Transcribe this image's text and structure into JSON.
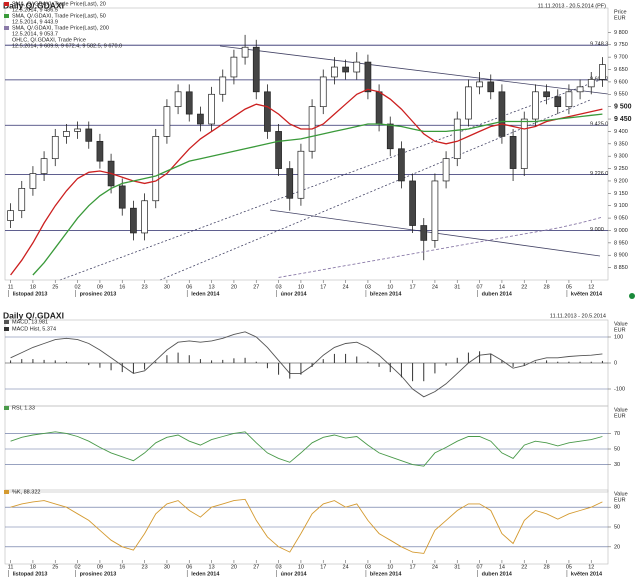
{
  "chart_data": [
    {
      "type": "candlestick",
      "title": "Daily Q/.GDAXI",
      "subtitle": "11.11.2013 - 20.5.2014 (PF)",
      "y_axis_label": "Price",
      "y_axis_unit": "EUR",
      "categories": [
        "11",
        null,
        "18",
        null,
        "25",
        null,
        "02",
        null,
        "09",
        null,
        "16",
        null,
        "23",
        null,
        "30",
        null,
        "06",
        null,
        "13",
        null,
        "20",
        null,
        "27",
        null,
        "03",
        null,
        "10",
        null,
        "17",
        null,
        "24",
        null,
        "03",
        null,
        "10",
        null,
        "17",
        null,
        "24",
        null,
        "31",
        null,
        "07",
        null,
        "14",
        null,
        "22",
        null,
        "28",
        null,
        "05",
        null,
        "12",
        null
      ],
      "months": [
        "listopad 2013",
        "prosinec 2013",
        "leden 2014",
        "únor 2014",
        "březen 2014",
        "duben 2014",
        "květen 2014"
      ],
      "open": [
        9040,
        9080,
        9170,
        9230,
        9290,
        9380,
        9400,
        9410,
        9360,
        9280,
        9180,
        9090,
        8990,
        9120,
        9380,
        9500,
        9560,
        9470,
        9430,
        9550,
        9620,
        9700,
        9740,
        9560,
        9400,
        9250,
        9130,
        9320,
        9500,
        9620,
        9660,
        9640,
        9680,
        9560,
        9430,
        9330,
        9200,
        9020,
        8960,
        9200,
        9290,
        9450,
        9580,
        9600,
        9560,
        9380,
        9250,
        9450,
        9560,
        9540,
        9500,
        9560,
        9580,
        9610
      ],
      "high": [
        9110,
        9200,
        9260,
        9320,
        9410,
        9430,
        9440,
        9440,
        9390,
        9310,
        9210,
        9120,
        9150,
        9410,
        9530,
        9590,
        9590,
        9500,
        9580,
        9650,
        9730,
        9790,
        9770,
        9590,
        9430,
        9280,
        9350,
        9530,
        9650,
        9700,
        9690,
        9720,
        9710,
        9590,
        9460,
        9360,
        9230,
        9050,
        9230,
        9320,
        9480,
        9610,
        9640,
        9630,
        9590,
        9410,
        9480,
        9590,
        9590,
        9570,
        9590,
        9610,
        9640,
        9700
      ],
      "low": [
        9010,
        9050,
        9140,
        9200,
        9260,
        9350,
        9370,
        9330,
        9250,
        9150,
        9060,
        8960,
        8960,
        9090,
        9350,
        9470,
        9440,
        9400,
        9400,
        9520,
        9590,
        9670,
        9530,
        9370,
        9220,
        9080,
        9100,
        9290,
        9470,
        9590,
        9610,
        9610,
        9530,
        9400,
        9300,
        9170,
        8990,
        8880,
        8930,
        9170,
        9260,
        9420,
        9550,
        9530,
        9350,
        9200,
        9220,
        9420,
        9510,
        9470,
        9470,
        9530,
        9550,
        9580
      ],
      "close": [
        9080,
        9170,
        9230,
        9290,
        9380,
        9400,
        9410,
        9360,
        9280,
        9180,
        9090,
        8990,
        9120,
        9380,
        9500,
        9560,
        9470,
        9430,
        9550,
        9620,
        9700,
        9740,
        9560,
        9400,
        9250,
        9130,
        9320,
        9500,
        9620,
        9660,
        9640,
        9680,
        9560,
        9430,
        9330,
        9200,
        9020,
        8960,
        9200,
        9290,
        9450,
        9580,
        9600,
        9560,
        9380,
        9250,
        9450,
        9560,
        9540,
        9500,
        9560,
        9580,
        9610,
        9670
      ],
      "series": [
        {
          "name": "SMA, Q/.GDAXI, Trade Price(Last), 20",
          "last": "12.5.2014, 9 486.5",
          "color": "#cc2020",
          "values": [
            8820,
            8880,
            8950,
            9030,
            9100,
            9160,
            9210,
            9235,
            9240,
            9230,
            9215,
            9200,
            9190,
            9200,
            9230,
            9280,
            9330,
            9370,
            9400,
            9430,
            9460,
            9490,
            9510,
            9500,
            9470,
            9430,
            9410,
            9410,
            9430,
            9470,
            9510,
            9550,
            9570,
            9560,
            9530,
            9490,
            9440,
            9390,
            9360,
            9350,
            9360,
            9380,
            9400,
            9420,
            9430,
            9420,
            9410,
            9420,
            9440,
            9450,
            9460,
            9470,
            9480,
            9490
          ]
        },
        {
          "name": "SMA, Q/.GDAXI, Trade Price(Last), 50",
          "last": "12.5.2014, 9 443.9",
          "color": "#3a9a3a",
          "values": [
            null,
            null,
            8820,
            8870,
            8930,
            8990,
            9050,
            9100,
            9140,
            9170,
            9190,
            9200,
            9210,
            9220,
            9240,
            9260,
            9280,
            9290,
            9300,
            9310,
            9320,
            9330,
            9340,
            9350,
            9360,
            9365,
            9370,
            9380,
            9390,
            9400,
            9410,
            9420,
            9430,
            9430,
            9425,
            9420,
            9410,
            9400,
            9400,
            9400,
            9405,
            9410,
            9420,
            9430,
            9440,
            9440,
            9440,
            9440,
            9445,
            9450,
            9455,
            9460,
            9465,
            9470
          ]
        },
        {
          "name": "SMA, Q/.GDAXI, Trade Price(Last), 200",
          "last": "12.5.2014, 9 053.7",
          "color": "#8a7aa8",
          "values": [
            null,
            null,
            null,
            null,
            null,
            null,
            null,
            null,
            null,
            null,
            null,
            null,
            null,
            null,
            null,
            null,
            null,
            null,
            null,
            null,
            null,
            null,
            null,
            null,
            8810,
            8818,
            8826,
            8834,
            8842,
            8850,
            8858,
            8866,
            8874,
            8882,
            8890,
            8898,
            8906,
            8914,
            8922,
            8930,
            8938,
            8946,
            8954,
            8962,
            8970,
            8978,
            8986,
            8994,
            9002,
            9010,
            9020,
            9030,
            9042,
            9054
          ]
        }
      ],
      "ohlc_name": "OHLC, Q/.GDAXI, Trade Price",
      "ohlc_last": "12.5.2014, 9 609.9, 9 672.4, 9 582.5, 9 670.0",
      "levels": [
        {
          "value": 9748.3,
          "label": "9 748.3"
        },
        {
          "value": 9608.2,
          "label": "9 608.2"
        },
        {
          "value": 9425.0,
          "label": "9 425.0"
        },
        {
          "value": 9226.0,
          "label": "9 226.0"
        },
        {
          "value": 9000,
          "label": "9 000"
        }
      ],
      "ylim": [
        8800,
        9850
      ],
      "yticks": [
        {
          "value": 8850,
          "label": "8 850"
        },
        {
          "value": 8900,
          "label": "8 900"
        },
        {
          "value": 8950,
          "label": "8 950"
        },
        {
          "value": 9000,
          "label": "9 000"
        },
        {
          "value": 9050,
          "label": "9 050"
        },
        {
          "value": 9100,
          "label": "9 100"
        },
        {
          "value": 9150,
          "label": "9 150"
        },
        {
          "value": 9200,
          "label": "9 200"
        },
        {
          "value": 9250,
          "label": "9 250"
        },
        {
          "value": 9300,
          "label": "9 300"
        },
        {
          "value": 9350,
          "label": "9 350"
        },
        {
          "value": 9400,
          "label": "9 400"
        },
        {
          "value": 9450,
          "label": "9 450"
        },
        {
          "value": 9500,
          "label": "9 500"
        },
        {
          "value": 9550,
          "label": "9 550"
        },
        {
          "value": 9600,
          "label": "9 600"
        },
        {
          "value": 9650,
          "label": "9 650"
        },
        {
          "value": 9700,
          "label": "9 700"
        },
        {
          "value": 9750,
          "label": "9 750"
        },
        {
          "value": 9800,
          "label": "9 800"
        }
      ]
    },
    {
      "type": "line",
      "title": "Daily Q/.GDAXI",
      "subtitle": "11.11.2013 - 20.5.2014",
      "y_axis_label": "Value",
      "y_axis_unit": "EUR",
      "series": [
        {
          "name": "MACD, 13.981",
          "color": "#555555",
          "kind": "line",
          "values": [
            20,
            40,
            60,
            75,
            90,
            95,
            90,
            75,
            50,
            20,
            -10,
            -40,
            -30,
            10,
            50,
            80,
            85,
            80,
            85,
            95,
            110,
            120,
            100,
            60,
            10,
            -40,
            -40,
            -10,
            30,
            60,
            75,
            80,
            60,
            30,
            -10,
            -50,
            -100,
            -130,
            -110,
            -80,
            -40,
            0,
            30,
            35,
            10,
            -20,
            -10,
            10,
            20,
            20,
            25,
            28,
            30,
            35
          ]
        },
        {
          "name": "MACD Hist, 5.374",
          "color": "#333333",
          "kind": "histogram",
          "values": [
            10,
            15,
            15,
            12,
            10,
            5,
            0,
            -8,
            -18,
            -28,
            -35,
            -40,
            -25,
            5,
            30,
            40,
            30,
            15,
            10,
            12,
            18,
            20,
            5,
            -20,
            -45,
            -60,
            -45,
            -15,
            15,
            35,
            35,
            25,
            5,
            -15,
            -35,
            -55,
            -70,
            -70,
            -40,
            -10,
            20,
            40,
            45,
            35,
            10,
            -15,
            -10,
            5,
            10,
            5,
            5,
            5,
            5,
            8
          ]
        }
      ],
      "ylim": [
        -150,
        150
      ],
      "yticks": [
        -100,
        0,
        100
      ]
    },
    {
      "type": "line",
      "y_axis_label": "Value",
      "y_axis_unit": "EUR",
      "series": [
        {
          "name": "RSI, 1.33",
          "color": "#4a9a4a",
          "kind": "line",
          "values": [
            60,
            65,
            68,
            70,
            72,
            70,
            66,
            60,
            52,
            45,
            40,
            35,
            45,
            58,
            65,
            68,
            60,
            55,
            62,
            66,
            70,
            72,
            58,
            45,
            38,
            33,
            45,
            58,
            65,
            68,
            64,
            66,
            55,
            45,
            40,
            35,
            30,
            28,
            45,
            52,
            60,
            66,
            66,
            60,
            45,
            38,
            55,
            60,
            58,
            54,
            58,
            60,
            62,
            66
          ]
        }
      ],
      "ylim": [
        0,
        100
      ],
      "yticks": [
        30,
        50,
        70
      ]
    },
    {
      "type": "line",
      "y_axis_label": "Value",
      "y_axis_unit": "EUR",
      "categories": [
        "11",
        null,
        "18",
        null,
        "25",
        null,
        "02",
        null,
        "09",
        null,
        "16",
        null,
        "23",
        null,
        "30",
        null,
        "06",
        null,
        "13",
        null,
        "20",
        null,
        "27",
        null,
        "03",
        null,
        "10",
        null,
        "17",
        null,
        "24",
        null,
        "03",
        null,
        "10",
        null,
        "17",
        null,
        "24",
        null,
        "31",
        null,
        "07",
        null,
        "14",
        null,
        "22",
        null,
        "28",
        null,
        "05",
        null,
        "12",
        null
      ],
      "months": [
        "listopad 2013",
        "prosinec 2013",
        "leden 2014",
        "únor 2014",
        "březen 2014",
        "duben 2014",
        "květen 2014"
      ],
      "series": [
        {
          "name": "%K, 88.322",
          "color": "#d49a30",
          "kind": "line",
          "values": [
            80,
            85,
            88,
            90,
            85,
            80,
            70,
            60,
            45,
            30,
            20,
            15,
            40,
            70,
            85,
            90,
            75,
            65,
            80,
            85,
            90,
            92,
            60,
            35,
            20,
            12,
            40,
            70,
            85,
            90,
            80,
            85,
            60,
            40,
            30,
            20,
            12,
            10,
            45,
            60,
            75,
            85,
            85,
            75,
            40,
            25,
            60,
            75,
            70,
            62,
            70,
            75,
            80,
            88
          ]
        }
      ],
      "ylim": [
        0,
        100
      ],
      "yticks": [
        20,
        50,
        80
      ]
    }
  ]
}
